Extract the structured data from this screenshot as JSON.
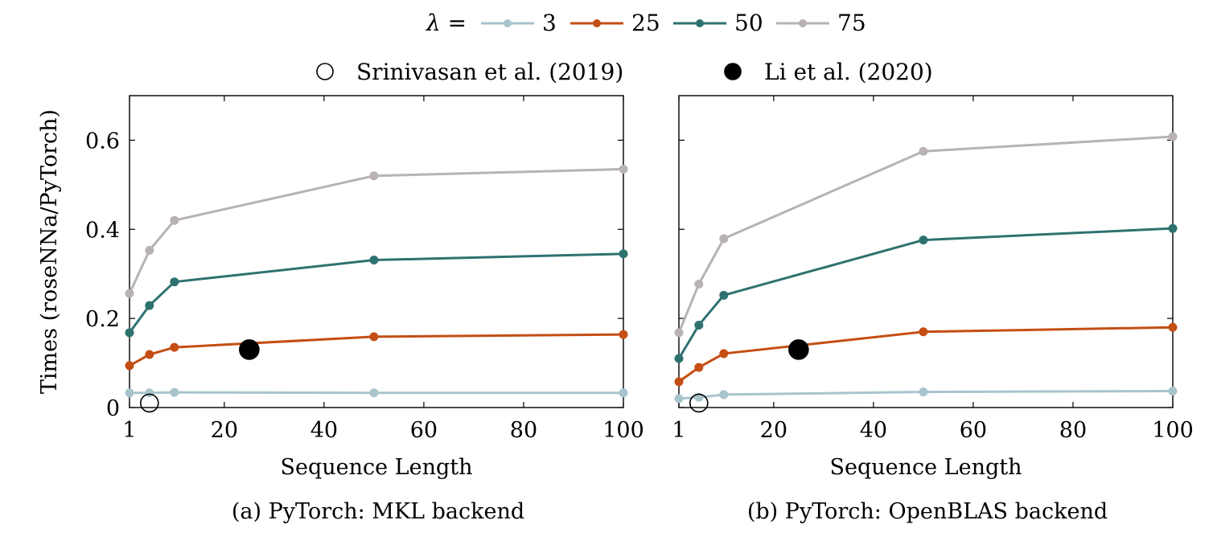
{
  "legend": {
    "lambda_label": "λ =",
    "series": [
      {
        "label": "3",
        "color": "#a8c4cc"
      },
      {
        "label": "25",
        "color": "#c44e14"
      },
      {
        "label": "50",
        "color": "#2e7270"
      },
      {
        "label": "75",
        "color": "#b8b2b2"
      }
    ],
    "references": [
      {
        "label": "Srinivasan et al. (2019)",
        "style": "open-circle"
      },
      {
        "label": "Li et al. (2020)",
        "style": "filled-circle"
      }
    ]
  },
  "chart_data": [
    {
      "type": "line",
      "caption": "(a) PyTorch: MKL backend",
      "xlabel": "Sequence Length",
      "ylabel": "Times (roseNNa/PyTorch)",
      "xlim": [
        1,
        100
      ],
      "ylim": [
        0,
        0.7
      ],
      "xticks": [
        1,
        20,
        40,
        60,
        80,
        100
      ],
      "yticks": [
        0,
        0.2,
        0.4,
        0.6
      ],
      "ytick_labels": [
        "0",
        "0.2",
        "0.4",
        "0.6"
      ],
      "x": [
        1,
        5,
        10,
        50,
        100
      ],
      "series": [
        {
          "name": "3",
          "color": "#a8c4cc",
          "values": [
            0.033,
            0.033,
            0.034,
            0.033,
            0.033
          ]
        },
        {
          "name": "25",
          "color": "#c44e14",
          "values": [
            0.094,
            0.119,
            0.135,
            0.159,
            0.164
          ]
        },
        {
          "name": "50",
          "color": "#2e7270",
          "values": [
            0.168,
            0.229,
            0.282,
            0.331,
            0.345
          ]
        },
        {
          "name": "75",
          "color": "#b8b2b2",
          "values": [
            0.256,
            0.353,
            0.42,
            0.52,
            0.535
          ]
        }
      ],
      "references": [
        {
          "label": "Srinivasan et al. (2019)",
          "style": "open-circle",
          "x": 5,
          "y": 0.01
        },
        {
          "label": "Li et al. (2020)",
          "style": "filled-circle",
          "x": 25,
          "y": 0.13
        }
      ]
    },
    {
      "type": "line",
      "caption": "(b) PyTorch: OpenBLAS backend",
      "xlabel": "Sequence Length",
      "ylabel": "",
      "xlim": [
        1,
        100
      ],
      "ylim": [
        0,
        0.7
      ],
      "xticks": [
        1,
        20,
        40,
        60,
        80,
        100
      ],
      "yticks": [
        0,
        0.2,
        0.4,
        0.6
      ],
      "ytick_labels": [],
      "x": [
        1,
        5,
        10,
        50,
        100
      ],
      "series": [
        {
          "name": "3",
          "color": "#a8c4cc",
          "values": [
            0.02,
            0.023,
            0.029,
            0.035,
            0.037
          ]
        },
        {
          "name": "25",
          "color": "#c44e14",
          "values": [
            0.058,
            0.09,
            0.121,
            0.17,
            0.18
          ]
        },
        {
          "name": "50",
          "color": "#2e7270",
          "values": [
            0.11,
            0.185,
            0.252,
            0.376,
            0.402
          ]
        },
        {
          "name": "75",
          "color": "#b8b2b2",
          "values": [
            0.168,
            0.277,
            0.379,
            0.575,
            0.608
          ]
        }
      ],
      "references": [
        {
          "label": "Srinivasan et al. (2019)",
          "style": "open-circle",
          "x": 5,
          "y": 0.01
        },
        {
          "label": "Li et al. (2020)",
          "style": "filled-circle",
          "x": 25,
          "y": 0.13
        }
      ]
    }
  ]
}
